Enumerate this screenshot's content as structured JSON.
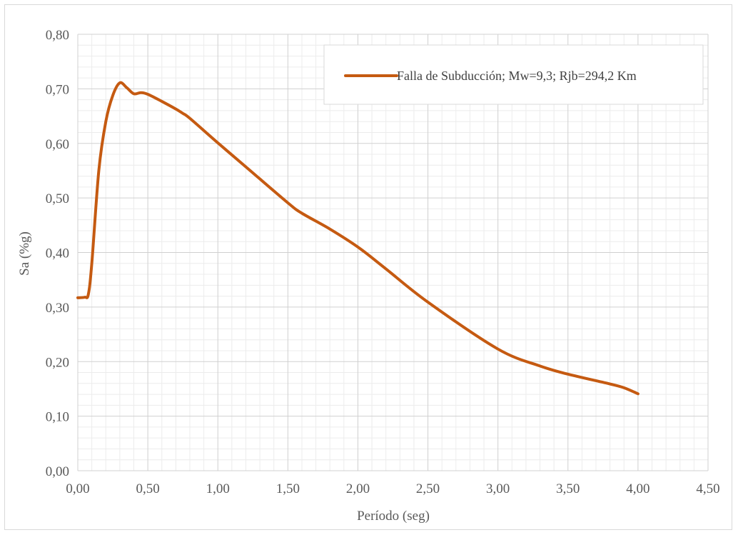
{
  "chart_data": {
    "type": "line",
    "title": "",
    "xlabel": "Período (seg)",
    "ylabel": "Sa (%g)",
    "xlim": [
      0,
      4.5
    ],
    "ylim": [
      0,
      0.8
    ],
    "x_ticks": [
      0,
      0.5,
      1,
      1.5,
      2,
      2.5,
      3,
      3.5,
      4,
      4.5
    ],
    "x_tick_labels": [
      "0,00",
      "0,50",
      "1,00",
      "1,50",
      "2,00",
      "2,50",
      "3,00",
      "3,50",
      "4,00",
      "4,50"
    ],
    "y_ticks": [
      0,
      0.1,
      0.2,
      0.3,
      0.4,
      0.5,
      0.6,
      0.7,
      0.8
    ],
    "y_tick_labels": [
      "0,00",
      "0,10",
      "0,20",
      "0,30",
      "0,40",
      "0,50",
      "0,60",
      "0,70",
      "0,80"
    ],
    "grid": true,
    "minor_grid": true,
    "legend_position": "top-right",
    "series": [
      {
        "name": "Falla de Subducción; Mw=9,3; Rjb=294,2 Km",
        "color": "#c55a11",
        "x": [
          0.0,
          0.05,
          0.075,
          0.1,
          0.15,
          0.2,
          0.25,
          0.3,
          0.35,
          0.4,
          0.45,
          0.5,
          0.6,
          0.7,
          0.75,
          0.8,
          1.0,
          1.2,
          1.5,
          1.6,
          1.8,
          2.0,
          2.2,
          2.5,
          3.0,
          3.3,
          3.5,
          3.8,
          3.9,
          4.0
        ],
        "y": [
          0.317,
          0.318,
          0.323,
          0.38,
          0.55,
          0.64,
          0.688,
          0.711,
          0.702,
          0.691,
          0.693,
          0.69,
          0.677,
          0.663,
          0.655,
          0.646,
          0.601,
          0.557,
          0.491,
          0.472,
          0.443,
          0.41,
          0.37,
          0.309,
          0.223,
          0.192,
          0.177,
          0.159,
          0.152,
          0.141
        ]
      }
    ]
  }
}
